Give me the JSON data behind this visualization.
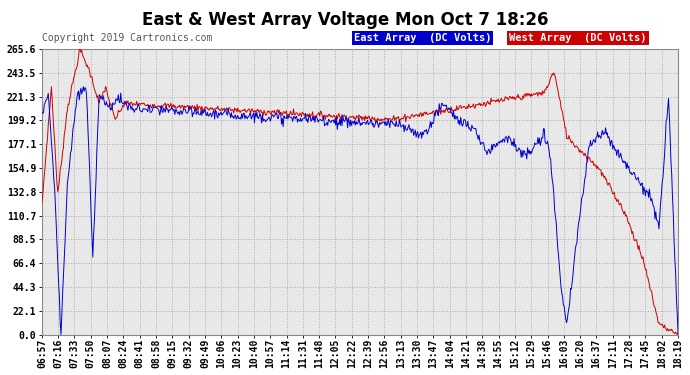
{
  "title": "East & West Array Voltage Mon Oct 7 18:26",
  "copyright": "Copyright 2019 Cartronics.com",
  "bg_color": "#ffffff",
  "plot_bg_color": "#e8e8e8",
  "grid_color": "#aaaaaa",
  "east_color": "#0000cc",
  "west_color": "#cc0000",
  "east_label": "East Array  (DC Volts)",
  "west_label": "West Array  (DC Volts)",
  "east_legend_bg": "#0000cc",
  "west_legend_bg": "#cc0000",
  "yticks": [
    0.0,
    22.1,
    44.3,
    66.4,
    88.5,
    110.7,
    132.8,
    154.9,
    177.1,
    199.2,
    221.3,
    243.5,
    265.6
  ],
  "ymin": 0.0,
  "ymax": 265.6,
  "xtick_labels": [
    "06:57",
    "07:16",
    "07:33",
    "07:50",
    "08:07",
    "08:24",
    "08:41",
    "08:58",
    "09:15",
    "09:32",
    "09:49",
    "10:06",
    "10:23",
    "10:40",
    "10:57",
    "11:14",
    "11:31",
    "11:48",
    "12:05",
    "12:22",
    "12:39",
    "12:56",
    "13:13",
    "13:30",
    "13:47",
    "14:04",
    "14:21",
    "14:38",
    "14:55",
    "15:12",
    "15:29",
    "15:46",
    "16:03",
    "16:20",
    "16:37",
    "17:11",
    "17:28",
    "17:45",
    "18:02",
    "18:19"
  ],
  "title_color": "#000000",
  "tick_color": "#000000",
  "copyright_color": "#555555",
  "title_fontsize": 12,
  "copyright_fontsize": 7,
  "tick_fontsize": 7,
  "legend_fontsize": 7.5
}
